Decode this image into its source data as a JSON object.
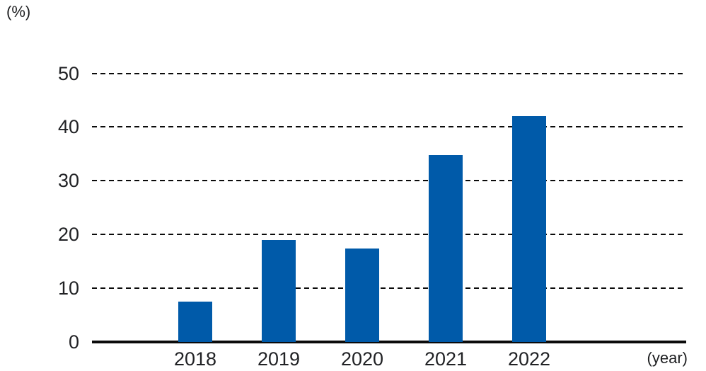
{
  "chart_data": {
    "type": "bar",
    "title": "",
    "categories": [
      "2018",
      "2019",
      "2020",
      "2021",
      "2022"
    ],
    "values": [
      7.5,
      19.0,
      17.4,
      34.8,
      42.0
    ],
    "xlabel": "(year)",
    "ylabel": "(%)",
    "yticks": [
      0,
      10,
      20,
      30,
      40,
      50
    ],
    "ylim": [
      0,
      50
    ],
    "grid": "horizontal-dashed",
    "legend_position": "none",
    "bar_color": "#005AA9",
    "axis_color": "#0B0B0B",
    "text_color": "#212225"
  }
}
